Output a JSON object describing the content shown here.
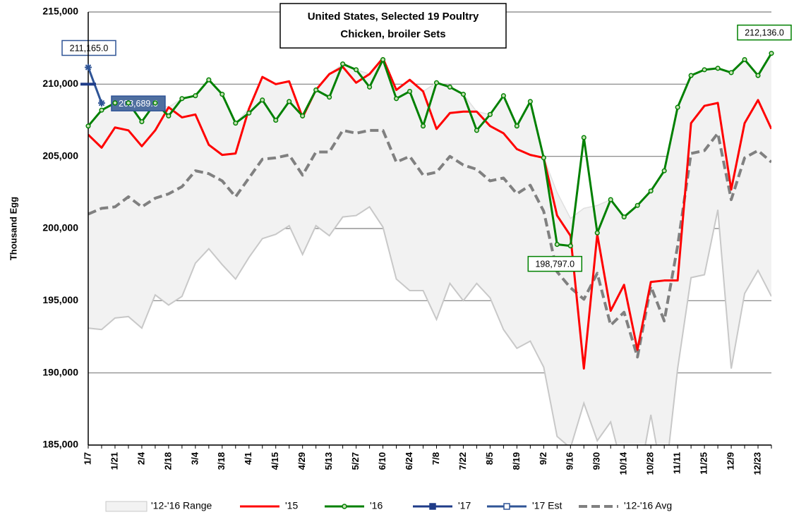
{
  "chart_data": {
    "type": "line",
    "title": "United States, Selected 19 Poultry",
    "subtitle": "Chicken, broiler Sets",
    "y_label": "Thousand Egg",
    "categories": [
      "1/7",
      null,
      "1/21",
      null,
      "2/4",
      null,
      "2/18",
      null,
      "3/4",
      null,
      "3/18",
      null,
      "4/1",
      null,
      "4/15",
      null,
      "4/29",
      null,
      "5/13",
      null,
      "5/27",
      null,
      "6/10",
      null,
      "6/24",
      null,
      "7/8",
      null,
      "7/22",
      null,
      "8/5",
      null,
      "8/19",
      null,
      "9/2",
      null,
      "9/16",
      null,
      "9/30",
      null,
      "10/14",
      null,
      "10/28",
      null,
      "11/11",
      null,
      "11/25",
      null,
      "12/9",
      null,
      "12/23",
      null
    ],
    "ylim": [
      185000,
      215000
    ],
    "yticks": [
      {
        "value": 185000,
        "label": "185,000"
      },
      {
        "value": 190000,
        "label": "190,000"
      },
      {
        "value": 195000,
        "label": "195,000"
      },
      {
        "value": 200000,
        "label": "200,000"
      },
      {
        "value": 205000,
        "label": "205,000"
      },
      {
        "value": 210000,
        "label": "210,000"
      },
      {
        "value": 215000,
        "label": "215,000"
      }
    ],
    "grid": true,
    "legend": "bottom",
    "series": [
      {
        "name": "'12-'16 Range",
        "color": "#f2f2f2",
        "edge_color": "#c8c8c8",
        "low": [
          193100,
          193000,
          193800,
          193900,
          193100,
          195400,
          194700,
          195300,
          197600,
          198600,
          197500,
          196500,
          198000,
          199300,
          199600,
          200200,
          198200,
          200200,
          199500,
          200800,
          200900,
          201500,
          200100,
          196500,
          195700,
          195700,
          193700,
          196200,
          195000,
          196200,
          195200,
          193000,
          191700,
          192200,
          190400,
          185600,
          184800,
          187900,
          185300,
          186600,
          183000,
          182000,
          187100,
          182000,
          190300,
          196600,
          196800,
          201300,
          190300,
          195500,
          197100,
          195300
        ],
        "high": [
          207100,
          208200,
          208700,
          208700,
          207400,
          208700,
          208400,
          209000,
          209200,
          210300,
          209300,
          207300,
          208300,
          210500,
          210000,
          210200,
          207800,
          209600,
          210700,
          211400,
          211000,
          210700,
          211800,
          209600,
          210300,
          209500,
          210100,
          209800,
          209300,
          208100,
          207900,
          209200,
          207100,
          208800,
          204900,
          202500,
          200700,
          201400,
          201600,
          202000,
          200800,
          201600,
          202600,
          204000,
          208400,
          210600,
          211000,
          211100,
          210800,
          211700,
          210600,
          212136
        ]
      },
      {
        "name": "'15",
        "color": "#ff0000",
        "values": [
          206500,
          205600,
          207000,
          206800,
          205700,
          206800,
          208400,
          207700,
          207900,
          205800,
          205100,
          205200,
          208300,
          210500,
          210000,
          210200,
          207700,
          209600,
          210700,
          211200,
          210100,
          210700,
          211800,
          209600,
          210300,
          209500,
          206900,
          208000,
          208100,
          208100,
          207100,
          206600,
          205500,
          205100,
          204900,
          200900,
          199500,
          190300,
          199600,
          194300,
          196100,
          191600,
          196300,
          196400,
          196400,
          207300,
          208500,
          208700,
          202700,
          207300,
          208900,
          206900
        ]
      },
      {
        "name": "'16",
        "color": "#008000",
        "marker": "circle",
        "values": [
          207100,
          208200,
          208700,
          208700,
          207400,
          208700,
          207800,
          209000,
          209200,
          210300,
          209300,
          207300,
          208000,
          208900,
          207500,
          208800,
          207800,
          209600,
          209100,
          211400,
          211000,
          209800,
          211700,
          209000,
          209500,
          207100,
          210100,
          209800,
          209300,
          206800,
          207900,
          209200,
          207100,
          208800,
          204900,
          198900,
          198797,
          206300,
          199700,
          202000,
          200800,
          201600,
          202600,
          204000,
          208400,
          210600,
          211000,
          211100,
          210800,
          211700,
          210600,
          212136
        ],
        "value_labels": [
          null,
          null,
          null,
          null,
          null,
          null,
          null,
          null,
          null,
          null,
          null,
          null,
          null,
          null,
          null,
          null,
          null,
          null,
          null,
          null,
          null,
          null,
          null,
          null,
          null,
          null,
          null,
          null,
          null,
          null,
          null,
          null,
          null,
          null,
          null,
          null,
          "198,797.0",
          null,
          null,
          null,
          null,
          null,
          null,
          null,
          null,
          null,
          null,
          null,
          null,
          null,
          null,
          "212,136.0"
        ]
      },
      {
        "name": "'17",
        "color": "#1f3c88",
        "marker": "square",
        "values": [
          210000,
          null,
          null,
          null,
          null,
          null,
          null,
          null,
          null,
          null,
          null,
          null,
          null,
          null,
          null,
          null,
          null,
          null,
          null,
          null,
          null,
          null,
          null,
          null,
          null,
          null,
          null,
          null,
          null,
          null,
          null,
          null,
          null,
          null,
          null,
          null,
          null,
          null,
          null,
          null,
          null,
          null,
          null,
          null,
          null,
          null,
          null,
          null,
          null,
          null,
          null,
          null
        ]
      },
      {
        "name": "'17 Est",
        "color": "#2f5496",
        "marker": "star",
        "values": [
          211165,
          208689,
          null,
          null,
          null,
          null,
          null,
          null,
          null,
          null,
          null,
          null,
          null,
          null,
          null,
          null,
          null,
          null,
          null,
          null,
          null,
          null,
          null,
          null,
          null,
          null,
          null,
          null,
          null,
          null,
          null,
          null,
          null,
          null,
          null,
          null,
          null,
          null,
          null,
          null,
          null,
          null,
          null,
          null,
          null,
          null,
          null,
          null,
          null,
          null,
          null,
          null
        ],
        "value_labels": [
          "211,165.0",
          "208,689.0",
          null,
          null,
          null,
          null,
          null,
          null,
          null,
          null,
          null,
          null,
          null,
          null,
          null,
          null,
          null,
          null,
          null,
          null,
          null,
          null,
          null,
          null,
          null,
          null,
          null,
          null,
          null,
          null,
          null,
          null,
          null,
          null,
          null,
          null,
          null,
          null,
          null,
          null,
          null,
          null,
          null,
          null,
          null,
          null,
          null,
          null,
          null,
          null,
          null,
          null
        ]
      },
      {
        "name": "'12-'16 Avg",
        "color": "#808080",
        "dash": true,
        "values": [
          201000,
          201400,
          201500,
          202200,
          201500,
          202100,
          202400,
          202900,
          204000,
          203800,
          203300,
          202200,
          203500,
          204800,
          204900,
          205100,
          203700,
          205300,
          205300,
          206800,
          206600,
          206800,
          206800,
          204600,
          205000,
          203700,
          203900,
          205000,
          204400,
          204100,
          203300,
          203500,
          202400,
          203000,
          201200,
          197000,
          195900,
          195100,
          196900,
          193300,
          194200,
          191100,
          196000,
          193600,
          198800,
          205200,
          205400,
          206600,
          202000,
          204900,
          205400,
          204600
        ]
      }
    ]
  }
}
